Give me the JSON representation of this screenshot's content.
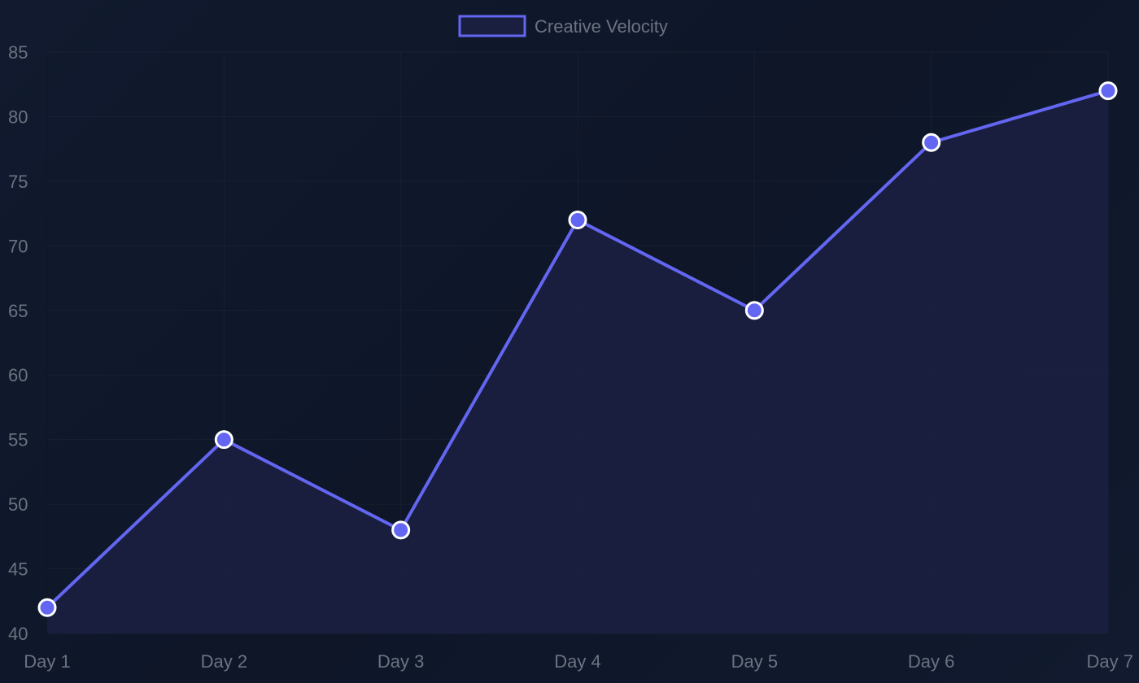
{
  "chart_data": {
    "type": "line",
    "title": "",
    "xlabel": "",
    "ylabel": "",
    "categories": [
      "Day 1",
      "Day 2",
      "Day 3",
      "Day 4",
      "Day 5",
      "Day 6",
      "Day 7"
    ],
    "series": [
      {
        "name": "Creative Velocity",
        "values": [
          42,
          55,
          48,
          72,
          65,
          78,
          82
        ],
        "color": "#6366f1",
        "fill": "#1a1f40",
        "point_color": "#6366f1",
        "point_border": "#ffffff"
      }
    ],
    "ylim": [
      40,
      85
    ],
    "yticks": [
      "85",
      "80",
      "75",
      "70",
      "65",
      "60",
      "55",
      "50",
      "45",
      "40"
    ],
    "grid": true,
    "legend": "top-center",
    "filled_area": true
  }
}
